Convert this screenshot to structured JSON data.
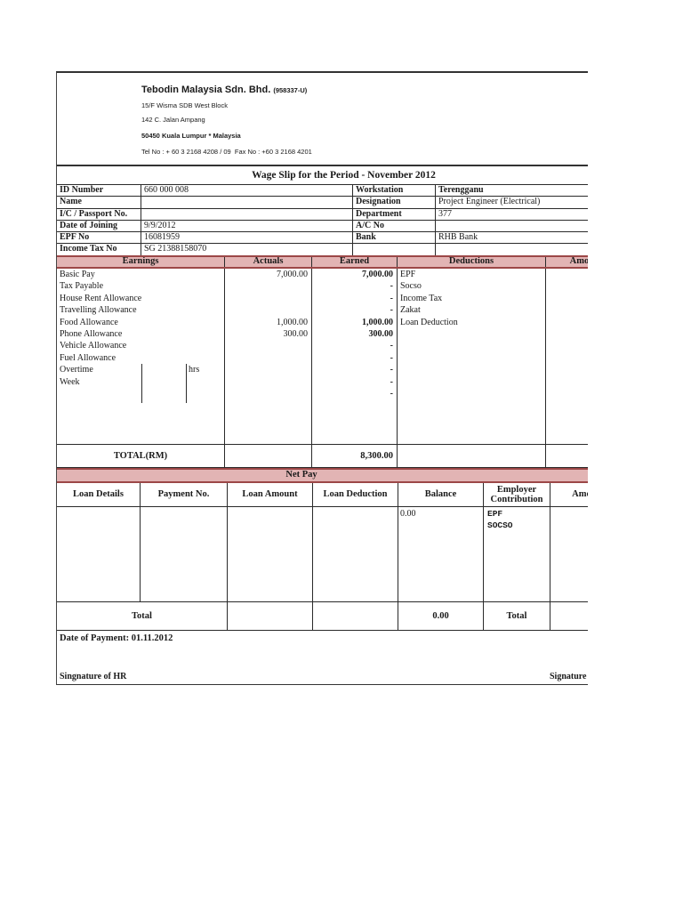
{
  "company": {
    "name": "Tebodin Malaysia Sdn. Bhd.",
    "reg_no": "(958337-U)",
    "address_line1": "15/F Wisma SDB West Block",
    "address_line2": "142 C. Jalan Ampang",
    "address_line3": "50450 Kuala Lumpur * Malaysia",
    "tel_fax": "Tel No : + 60 3 2168 4208 / 09  Fax No : +60 3 2168 4201"
  },
  "title": "Wage Slip for the Period - November 2012",
  "employee": {
    "rows": [
      {
        "l1": "ID Number",
        "v1": "660 000 008",
        "l2": "Workstation",
        "v2": "Terengganu"
      },
      {
        "l1": "Name",
        "v1": "",
        "l2": "Designation",
        "v2": "Project Engineer (Electrical)"
      },
      {
        "l1": "I/C  / Passport No.",
        "v1": "",
        "l2": "Department",
        "v2": "377"
      },
      {
        "l1": "Date of Joining",
        "v1": "9/9/2012",
        "l2": "A/C No",
        "v2": ""
      },
      {
        "l1": "EPF No",
        "v1": "16081959",
        "l2": "Bank",
        "v2": "RHB Bank"
      },
      {
        "l1": "Income Tax No",
        "v1": "SG 21388158070",
        "l2": "",
        "v2": ""
      }
    ]
  },
  "earnings": {
    "headers": {
      "earnings": "Earnings",
      "actuals": "Actuals",
      "earned": "Earned",
      "deductions": "Deductions",
      "amount": "Amount"
    },
    "rows": [
      {
        "label": "Basic Pay",
        "actual": "7,000.00",
        "earned": "7,000.00",
        "deduction": "EPF"
      },
      {
        "label": "Tax Payable",
        "actual": "",
        "earned": "-",
        "deduction": "Socso"
      },
      {
        "label": "House Rent Allowance",
        "actual": "",
        "earned": "-",
        "deduction": "Income Tax"
      },
      {
        "label": "Travelling Allowance",
        "actual": "",
        "earned": "-",
        "deduction": "Zakat"
      },
      {
        "label": "Food Allowance",
        "actual": "1,000.00",
        "earned": "1,000.00",
        "deduction": "Loan Deduction"
      },
      {
        "label": "Phone Allowance",
        "actual": "300.00",
        "earned": "300.00",
        "deduction": ""
      },
      {
        "label": "Vehicle Allowance",
        "actual": "",
        "earned": "-",
        "deduction": ""
      },
      {
        "label": "Fuel Allowance",
        "actual": "",
        "earned": "-",
        "deduction": ""
      },
      {
        "label": "Overtime",
        "unit": "hrs",
        "actual": "",
        "earned": "-",
        "deduction": ""
      },
      {
        "label": "Week",
        "actual": "",
        "earned": "-",
        "deduction": ""
      },
      {
        "label": "",
        "actual": "",
        "earned": "-",
        "deduction": ""
      }
    ],
    "total_label": "TOTAL(RM)",
    "total_earned": "8,300.00"
  },
  "net_pay_label": "Net Pay",
  "loans": {
    "headers": {
      "loan_details": "Loan Details",
      "payment_no": "Payment No.",
      "loan_amount": "Loan Amount",
      "loan_deduction": "Loan Deduction",
      "balance": "Balance",
      "employer_contribution": "Employer Contribution",
      "amount": "Amount"
    },
    "balance_value": "0.00",
    "employer_items": {
      "item0": "EPF",
      "item1": "SOCSO"
    },
    "total_label": "Total",
    "total_balance": "0.00",
    "employer_total_label": "Total"
  },
  "footer": {
    "date_of_payment": "Date of Payment: 01.11.2012",
    "signature_left": "Singnature of HR",
    "signature_right": "Signature of Employee"
  },
  "colors": {
    "band_pink": "#e2b4b4",
    "band_border": "#9c4747",
    "line": "#2a2a2a"
  }
}
